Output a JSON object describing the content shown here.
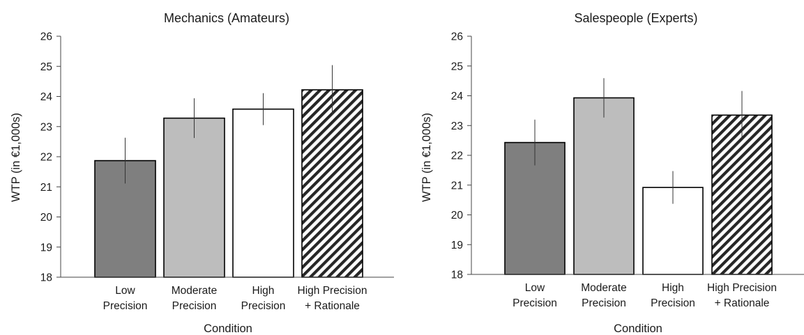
{
  "chart_data": [
    {
      "type": "bar",
      "title": "Mechanics (Amateurs)",
      "xlabel": "Condition",
      "ylabel": "WTP (in €1,000s)",
      "ylim": [
        18,
        26
      ],
      "yticks": [
        "18",
        "19",
        "20",
        "21",
        "22",
        "23",
        "24",
        "25",
        "26"
      ],
      "categories": [
        [
          "Low",
          "Precision"
        ],
        [
          "Moderate",
          "Precision"
        ],
        [
          "High",
          "Precision"
        ],
        [
          "High Precision",
          "+ Rationale"
        ]
      ],
      "values": [
        21.87,
        23.28,
        23.58,
        24.22
      ],
      "errors": [
        0.76,
        0.66,
        0.53,
        0.82
      ],
      "fills": [
        "dark-gray",
        "light-gray",
        "white",
        "hatched"
      ],
      "grid": false
    },
    {
      "type": "bar",
      "title": "Salespeople (Experts)",
      "xlabel": "Condition",
      "ylabel": "WTP (in €1,000s)",
      "ylim": [
        18,
        26
      ],
      "yticks": [
        "18",
        "19",
        "20",
        "21",
        "22",
        "23",
        "24",
        "25",
        "26"
      ],
      "categories": [
        [
          "Low",
          "Precision"
        ],
        [
          "Moderate",
          "Precision"
        ],
        [
          "High",
          "Precision"
        ],
        [
          "High Precision",
          "+ Rationale"
        ]
      ],
      "values": [
        22.43,
        23.93,
        20.92,
        23.35
      ],
      "errors": [
        0.77,
        0.66,
        0.55,
        0.81
      ],
      "fills": [
        "dark-gray",
        "light-gray",
        "white",
        "hatched"
      ],
      "grid": false
    }
  ],
  "colors": {
    "dark-gray": "#7f7f7f",
    "light-gray": "#bdbdbd",
    "white": "#ffffff",
    "hatch": "#262626",
    "axis": "#444444"
  }
}
